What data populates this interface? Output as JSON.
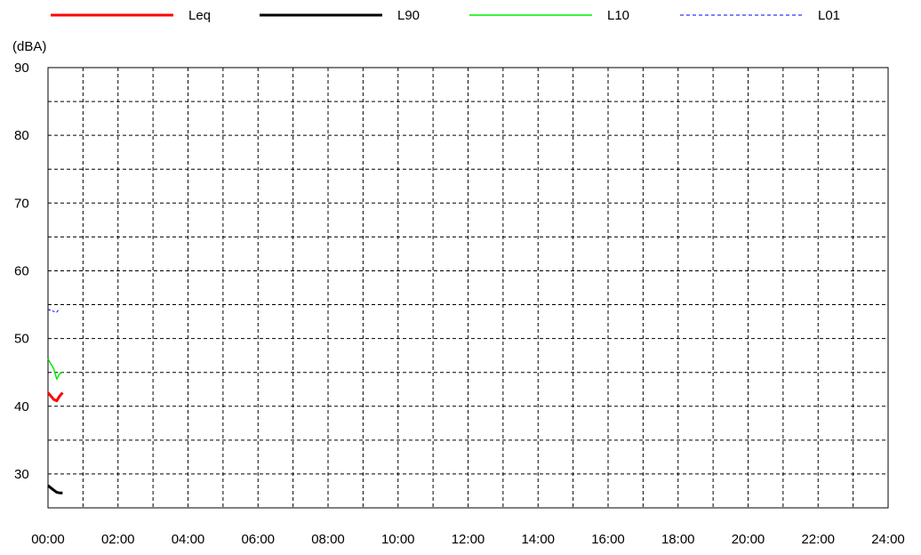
{
  "chart_data": {
    "type": "line",
    "ylabel": "(dBA)",
    "xlim": [
      "00:00",
      "24:00"
    ],
    "ylim": [
      25,
      90
    ],
    "x_ticks": [
      "00:00",
      "02:00",
      "04:00",
      "06:00",
      "08:00",
      "10:00",
      "12:00",
      "14:00",
      "16:00",
      "18:00",
      "20:00",
      "22:00",
      "24:00"
    ],
    "y_ticks": [
      30,
      40,
      50,
      60,
      70,
      80,
      90
    ],
    "grid": true,
    "legend": "top",
    "series": [
      {
        "name": "Leq",
        "color": "#ff0000",
        "style": "solid",
        "width": 3,
        "x": [
          "00:00",
          "00:10",
          "00:15",
          "00:20",
          "00:25"
        ],
        "y": [
          42.0,
          41.0,
          40.8,
          41.5,
          42.0
        ]
      },
      {
        "name": "L90",
        "color": "#000000",
        "style": "solid",
        "width": 3,
        "x": [
          "00:00",
          "00:10",
          "00:15",
          "00:20",
          "00:25"
        ],
        "y": [
          28.3,
          27.6,
          27.3,
          27.2,
          27.2
        ]
      },
      {
        "name": "L10",
        "color": "#00ee00",
        "style": "solid",
        "width": 1.5,
        "x": [
          "00:00",
          "00:10",
          "00:15",
          "00:20",
          "00:25"
        ],
        "y": [
          47.0,
          45.5,
          44.0,
          44.8,
          45.0
        ]
      },
      {
        "name": "L01",
        "color": "#0000ff",
        "style": "dashed",
        "width": 1,
        "x": [
          "00:00",
          "00:10",
          "00:15",
          "00:20"
        ],
        "y": [
          54.3,
          54.0,
          53.9,
          54.4
        ]
      }
    ]
  }
}
